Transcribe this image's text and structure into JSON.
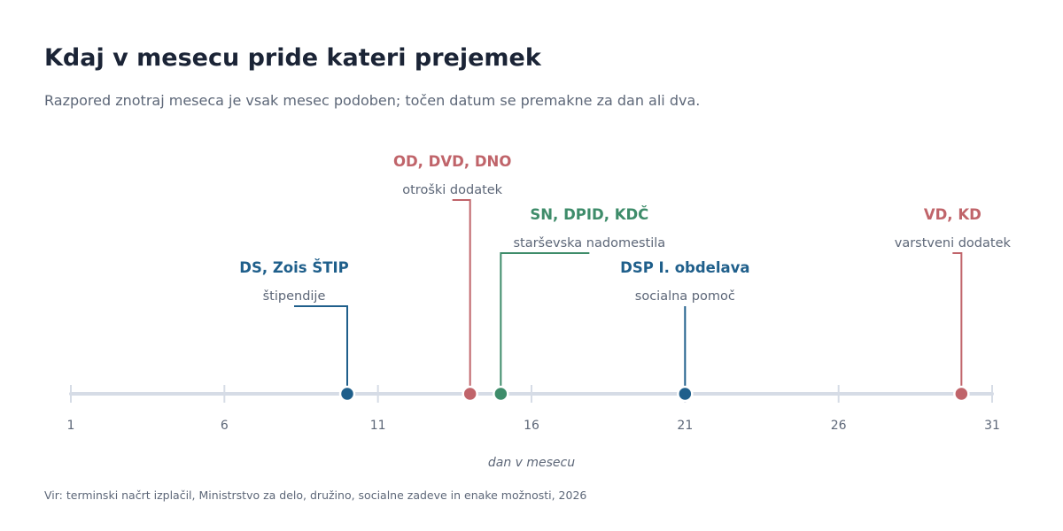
{
  "title": "Kdaj v mesecu pride kateri prejemek",
  "subtitle": "Razpored znotraj meseca je vsak mesec podoben; točen datum se premakne za dan ali dva.",
  "source": "Vir: terminski načrt izplačil, Ministrstvo za delo, družino, socialne zadeve in enake možnosti, 2026",
  "chart_data": {
    "type": "scatter",
    "xlabel": "dan v mesecu",
    "xlim": [
      1,
      31
    ],
    "ticks": [
      1,
      6,
      11,
      16,
      21,
      26,
      31
    ],
    "grid": false,
    "events": [
      {
        "day": 10,
        "label": "DS, Zois ŠTIP",
        "description": "štipendije",
        "color": "#1f5f8b",
        "tier": 1
      },
      {
        "day": 14,
        "label": "OD, DVD, DNO",
        "description": "otroški dodatek",
        "color": "#c0646a",
        "tier": 3
      },
      {
        "day": 15,
        "label": "SN, DPID, KDČ",
        "description": "starševska nadomestila",
        "color": "#3e8c6a",
        "tier": 2
      },
      {
        "day": 21,
        "label": "DSP I. obdelava",
        "description": "socialna pomoč",
        "color": "#1f5f8b",
        "tier": 1
      },
      {
        "day": 30,
        "label": "VD, KD",
        "description": "varstveni dodatek",
        "color": "#c0646a",
        "tier": 2
      }
    ]
  }
}
